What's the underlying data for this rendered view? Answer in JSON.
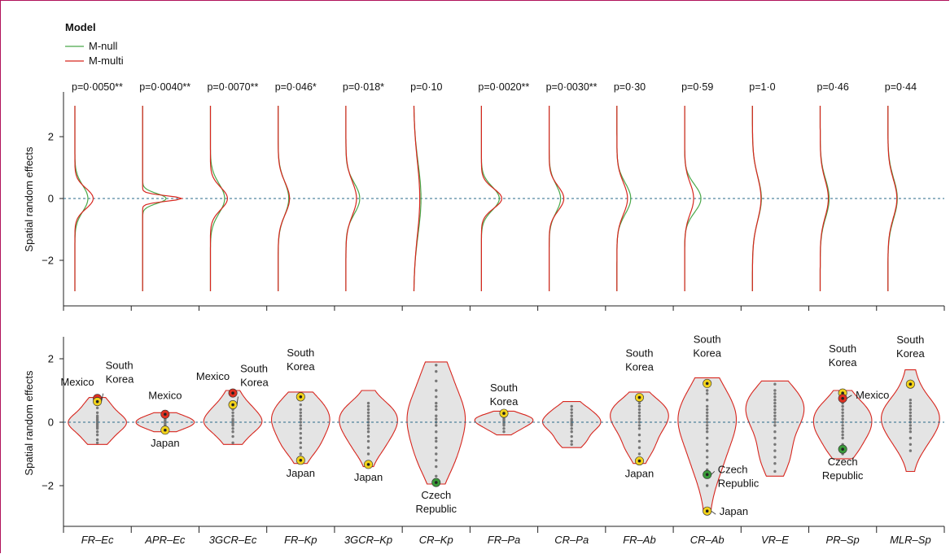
{
  "chart_data": {
    "type": "violin",
    "legend": {
      "title": "Model",
      "entries": [
        {
          "name": "M-null",
          "color": "#4aa84a"
        },
        {
          "name": "M-multi",
          "color": "#d7261e"
        }
      ]
    },
    "ylabel": "Spatial random effects",
    "categories": [
      "FR–Ec",
      "APR–Ec",
      "3GCR–Ec",
      "FR–Kp",
      "3GCR–Kp",
      "CR–Kp",
      "FR–Pa",
      "CR–Pa",
      "FR–Ab",
      "CR–Ab",
      "VR–E",
      "PR–Sp",
      "MLR–Sp"
    ],
    "top_panel": {
      "ylim": [
        -3,
        3
      ],
      "yticks": [
        -2,
        0,
        2
      ],
      "pvalues": [
        "p=0·0050**",
        "p=0·0040**",
        "p=0·0070**",
        "p=0·046*",
        "p=0·018*",
        "p=0·10",
        "p=0·0020**",
        "p=0·0030**",
        "p=0·30",
        "p=0·59",
        "p=1·0",
        "p=0·46",
        "p=0·44"
      ],
      "density_params": [
        {
          "null": {
            "sd": 0.42,
            "h": 0.32
          },
          "multi": {
            "sd": 0.33,
            "h": 0.45
          }
        },
        {
          "null": {
            "sd": 0.16,
            "h": 0.58
          },
          "multi": {
            "sd": 0.09,
            "h": 0.96
          }
        },
        {
          "null": {
            "sd": 0.48,
            "h": 0.35
          },
          "multi": {
            "sd": 0.36,
            "h": 0.42
          }
        },
        {
          "null": {
            "sd": 0.55,
            "h": 0.26
          },
          "multi": {
            "sd": 0.52,
            "h": 0.28
          }
        },
        {
          "null": {
            "sd": 0.5,
            "h": 0.34
          },
          "multi": {
            "sd": 0.55,
            "h": 0.26
          }
        },
        {
          "null": {
            "sd": 1.15,
            "h": 0.18
          },
          "multi": {
            "sd": 1.2,
            "h": 0.15
          }
        },
        {
          "null": {
            "sd": 0.38,
            "h": 0.44
          },
          "multi": {
            "sd": 0.32,
            "h": 0.5
          }
        },
        {
          "null": {
            "sd": 0.45,
            "h": 0.28
          },
          "multi": {
            "sd": 0.4,
            "h": 0.36
          }
        },
        {
          "null": {
            "sd": 0.5,
            "h": 0.34
          },
          "multi": {
            "sd": 0.52,
            "h": 0.26
          }
        },
        {
          "null": {
            "sd": 0.45,
            "h": 0.4
          },
          "multi": {
            "sd": 0.5,
            "h": 0.22
          }
        },
        {
          "null": {
            "sd": 0.7,
            "h": 0.22
          },
          "multi": {
            "sd": 0.72,
            "h": 0.21
          }
        },
        {
          "null": {
            "sd": 0.62,
            "h": 0.22
          },
          "multi": {
            "sd": 0.6,
            "h": 0.2
          }
        },
        {
          "null": {
            "sd": 0.65,
            "h": 0.23
          },
          "multi": {
            "sd": 0.62,
            "h": 0.22
          }
        }
      ]
    },
    "bottom_panel": {
      "ylim": [
        -3.3,
        2.6
      ],
      "yticks": [
        -2,
        0,
        2
      ],
      "violins": [
        {
          "min": -0.7,
          "max": 0.78,
          "points": [
            0.7,
            0.55,
            0.45,
            0.3,
            0.2,
            0.15,
            0.1,
            0.05,
            0,
            -0.05,
            -0.1,
            -0.15,
            -0.2,
            -0.3,
            -0.4,
            -0.55,
            -0.65
          ]
        },
        {
          "min": -0.3,
          "max": 0.3,
          "points": [
            0.25,
            0.15,
            0.1,
            0.05,
            0,
            -0.05,
            -0.1,
            -0.15,
            -0.25
          ]
        },
        {
          "min": -0.7,
          "max": 1.0,
          "points": [
            0.9,
            0.6,
            0.5,
            0.4,
            0.3,
            0.2,
            0.1,
            0.05,
            0,
            -0.05,
            -0.1,
            -0.2,
            -0.3,
            -0.45,
            -0.65
          ]
        },
        {
          "min": -1.3,
          "max": 0.95,
          "points": [
            0.85,
            0.7,
            0.55,
            0.4,
            0.3,
            0.2,
            0.1,
            0,
            -0.1,
            -0.2,
            -0.35,
            -0.5,
            -0.65,
            -0.8,
            -1.0
          ]
        },
        {
          "min": -1.4,
          "max": 1.0,
          "points": [
            0.6,
            0.5,
            0.4,
            0.3,
            0.2,
            0.1,
            0,
            -0.1,
            -0.2,
            -0.3,
            -0.45,
            -0.6,
            -0.8,
            -1.0
          ]
        },
        {
          "min": -1.95,
          "max": 1.9,
          "points": [
            1.8,
            1.6,
            1.3,
            1.0,
            0.8,
            0.6,
            0.5,
            0.4,
            0.2,
            0.1,
            0,
            -0.1,
            -0.3,
            -0.5,
            -0.6,
            -0.8,
            -1.0,
            -1.2,
            -1.4,
            -1.7
          ]
        },
        {
          "min": -0.4,
          "max": 0.35,
          "points": [
            0.25,
            0.2,
            0.15,
            0.1,
            0.05,
            0,
            -0.05,
            -0.1,
            -0.2,
            -0.3
          ]
        },
        {
          "min": -0.8,
          "max": 0.65,
          "points": [
            0.5,
            0.4,
            0.3,
            0.2,
            0.1,
            0.05,
            0,
            -0.05,
            -0.1,
            -0.2,
            -0.3,
            -0.45,
            -0.6,
            -0.7
          ]
        },
        {
          "min": -1.3,
          "max": 0.95,
          "points": [
            0.7,
            0.6,
            0.5,
            0.4,
            0.3,
            0.2,
            0.1,
            0,
            -0.1,
            -0.2,
            -0.4,
            -0.6,
            -0.8,
            -1.0
          ]
        },
        {
          "min": -2.85,
          "max": 1.4,
          "points": [
            1.3,
            1.0,
            0.9,
            0.7,
            0.5,
            0.4,
            0.3,
            0.2,
            0.1,
            0,
            -0.1,
            -0.2,
            -0.3,
            -0.5,
            -0.7,
            -0.9,
            -1.1,
            -1.3,
            -1.5,
            -2.0
          ]
        },
        {
          "min": -1.7,
          "max": 1.3,
          "points": [
            1.2,
            1.0,
            0.9,
            0.8,
            0.7,
            0.6,
            0.5,
            0.4,
            0.3,
            0.2,
            0.1,
            0,
            -0.1,
            -0.3,
            -0.5,
            -0.7,
            -0.9,
            -1.1,
            -1.3,
            -1.55
          ]
        },
        {
          "min": -1.15,
          "max": 1.0,
          "points": [
            0.9,
            0.6,
            0.5,
            0.4,
            0.3,
            0.2,
            0.1,
            0,
            -0.1,
            -0.2,
            -0.3,
            -0.4,
            -0.5,
            -0.7,
            -0.9,
            -1.0
          ]
        },
        {
          "min": -1.55,
          "max": 1.65,
          "points": [
            1.3,
            0.7,
            0.6,
            0.5,
            0.4,
            0.3,
            0.2,
            0.1,
            0,
            -0.1,
            -0.2,
            -0.3,
            -0.5,
            -0.7,
            -0.9
          ]
        }
      ],
      "highlights": [
        {
          "category": "FR–Ec",
          "y": 0.75,
          "color": "#e03020",
          "label": "Mexico"
        },
        {
          "category": "FR–Ec",
          "y": 0.65,
          "color": "#f2d21b",
          "label": "South Korea"
        },
        {
          "category": "APR–Ec",
          "y": 0.25,
          "color": "#e03020",
          "label": "Mexico"
        },
        {
          "category": "APR–Ec",
          "y": -0.25,
          "color": "#f2d21b",
          "label": "Japan"
        },
        {
          "category": "3GCR–Ec",
          "y": 0.92,
          "color": "#e03020",
          "label": "Mexico"
        },
        {
          "category": "3GCR–Ec",
          "y": 0.55,
          "color": "#f2d21b",
          "label": "South Korea"
        },
        {
          "category": "FR–Kp",
          "y": 0.8,
          "color": "#f2d21b",
          "label": "South Korea"
        },
        {
          "category": "FR–Kp",
          "y": -1.2,
          "color": "#f2d21b",
          "label": "Japan"
        },
        {
          "category": "3GCR–Kp",
          "y": -1.33,
          "color": "#f2d21b",
          "label": "Japan"
        },
        {
          "category": "CR–Kp",
          "y": -1.9,
          "color": "#3a9a3a",
          "label": "Czech Republic"
        },
        {
          "category": "FR–Pa",
          "y": 0.28,
          "color": "#f2d21b",
          "label": "South Korea"
        },
        {
          "category": "FR–Ab",
          "y": 0.78,
          "color": "#f2d21b",
          "label": "South Korea"
        },
        {
          "category": "FR–Ab",
          "y": -1.22,
          "color": "#f2d21b",
          "label": "Japan"
        },
        {
          "category": "CR–Ab",
          "y": 1.22,
          "color": "#f2d21b",
          "label": "South Korea"
        },
        {
          "category": "CR–Ab",
          "y": -1.65,
          "color": "#3a9a3a",
          "label": "Czech Republic"
        },
        {
          "category": "CR–Ab",
          "y": -2.8,
          "color": "#f2d21b",
          "label": "Japan"
        },
        {
          "category": "PR–Sp",
          "y": 0.92,
          "color": "#f2d21b",
          "label": "South Korea"
        },
        {
          "category": "PR–Sp",
          "y": 0.75,
          "color": "#e03020",
          "label": "Mexico"
        },
        {
          "category": "PR–Sp",
          "y": -0.85,
          "color": "#3a9a3a",
          "label": "Czech Republic"
        },
        {
          "category": "MLR–Sp",
          "y": 1.2,
          "color": "#f2d21b",
          "label": "South Korea"
        }
      ]
    },
    "colors": {
      "violin_fill": "#e4e4e4",
      "violin_edge": "#d7261e",
      "refline": "#2a6a8a",
      "frame": "#b0125b"
    }
  }
}
